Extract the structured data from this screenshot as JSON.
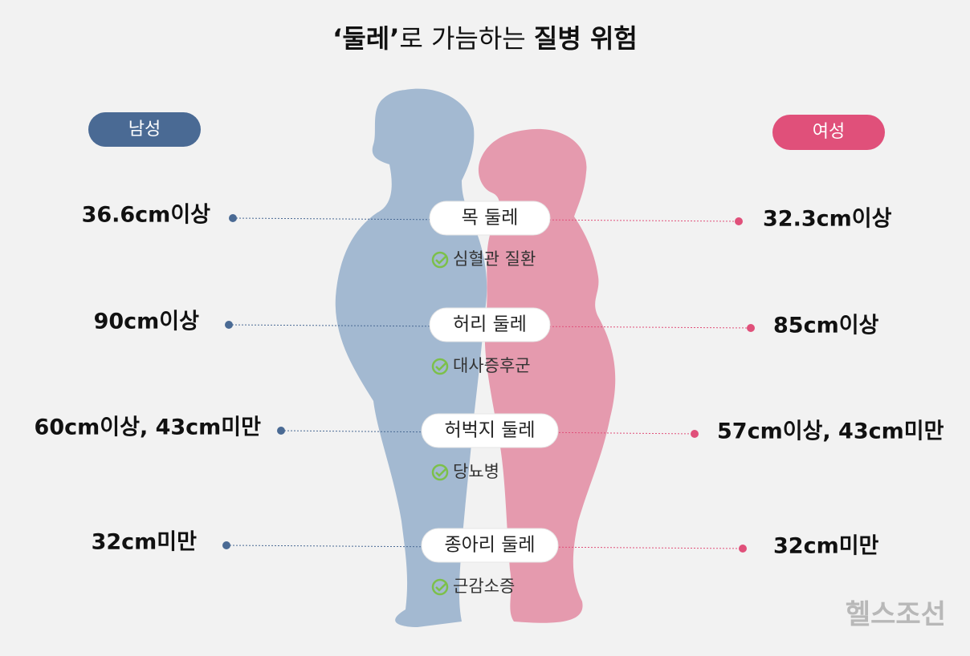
{
  "header": {
    "title_parts": [
      "‘둘레’",
      "로 가늠하는 ",
      "질병 위험"
    ]
  },
  "legend": {
    "male": "남성",
    "female": "여성"
  },
  "rows": [
    {
      "label": "목 둘레",
      "disease": "심혈관 질환",
      "male": "36.6cm이상",
      "female": "32.3cm이상"
    },
    {
      "label": "허리 둘레",
      "disease": "대사증후군",
      "male": "90cm이상",
      "female": "85cm이상"
    },
    {
      "label": "허벅지 둘레",
      "disease": "당뇨병",
      "male": "60cm이상, 43cm미만",
      "female": "57cm이상, 43cm미만"
    },
    {
      "label": "종아리 둘레",
      "disease": "근감소증",
      "male": "32cm미만",
      "female": "32cm미만"
    }
  ],
  "watermark": "헬스조선"
}
